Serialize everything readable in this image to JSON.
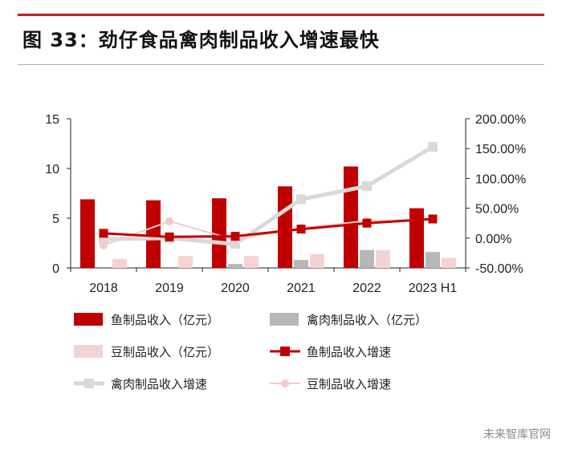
{
  "title": "图 33：劲仔食品禽肉制品收入增速最快",
  "watermark": "未来智库官网",
  "colors": {
    "fish_bar": "#c00000",
    "poultry_bar": "#b7b7b7",
    "bean_bar": "#f6d3d3",
    "fish_line": "#c00000",
    "poultry_line": "#d9d9d9",
    "bean_line": "#f4caca",
    "accent_rule": "#c41e22"
  },
  "chart_data": {
    "type": "bar",
    "categories": [
      "2018",
      "2019",
      "2020",
      "2021",
      "2022",
      "2023 H1"
    ],
    "y_left": {
      "lim": [
        0,
        15
      ],
      "ticks": [
        "0",
        "5",
        "10",
        "15"
      ]
    },
    "y_right": {
      "lim": [
        -0.5,
        2.0
      ],
      "ticks": [
        "-50.00%",
        "0.00%",
        "50.00%",
        "100.00%",
        "150.00%",
        "200.00%"
      ]
    },
    "bar_series": [
      {
        "name": "鱼制品收入（亿元）",
        "axis": "left",
        "values": [
          6.9,
          6.8,
          7.0,
          8.2,
          10.2,
          6.0
        ]
      },
      {
        "name": "禽肉制品收入（亿元）",
        "axis": "left",
        "values": [
          0.0,
          0.0,
          0.4,
          0.8,
          1.8,
          1.6
        ]
      },
      {
        "name": "豆制品收入（亿元）",
        "axis": "left",
        "values": [
          0.9,
          1.2,
          1.2,
          1.4,
          1.8,
          1.0
        ]
      }
    ],
    "line_series": [
      {
        "name": "鱼制品收入增速",
        "axis": "right",
        "values": [
          0.08,
          0.02,
          0.03,
          0.15,
          0.25,
          0.32
        ]
      },
      {
        "name": "禽肉制品收入增速",
        "axis": "right",
        "values": [
          -0.02,
          0.0,
          -0.1,
          0.65,
          0.87,
          1.53
        ]
      },
      {
        "name": "豆制品收入增速",
        "axis": "right",
        "values": [
          -0.12,
          0.28,
          -0.03,
          0.17,
          0.29,
          0.31
        ]
      }
    ]
  }
}
